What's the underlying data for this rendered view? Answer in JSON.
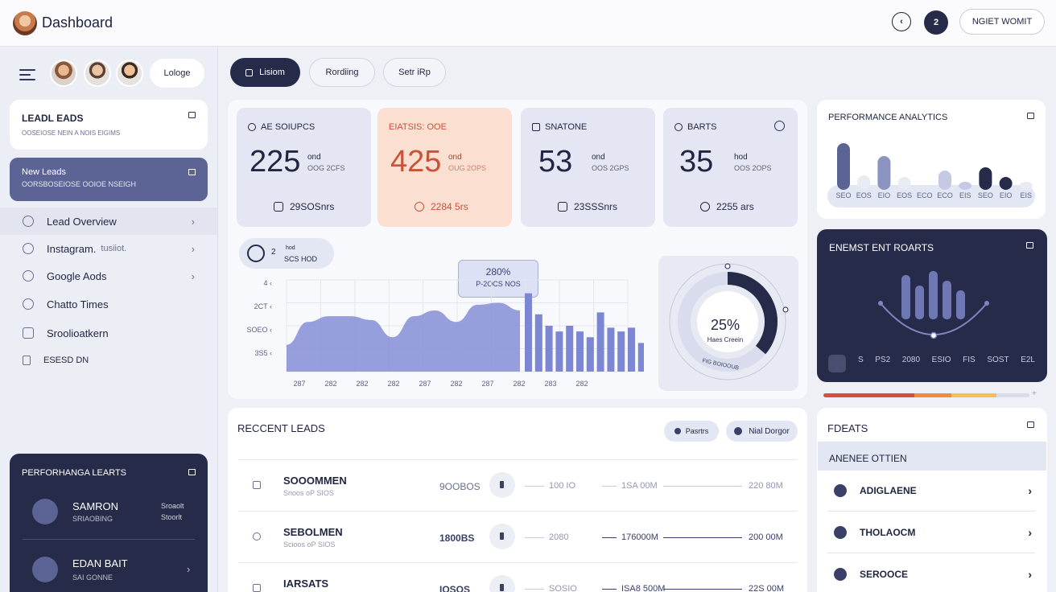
{
  "header": {
    "title": "Dashboard",
    "circle1": "‹",
    "circle2": "2",
    "button": "NGIET WOMIT"
  },
  "sidebar": {
    "profile_button": "Lologe",
    "leads_card": {
      "title": "LEADL EADS",
      "subtitle": "OOSEIOSE NEIN A NOIS EIGIMS"
    },
    "new_leads": {
      "title": "New Leads",
      "subtitle": "OORSBOSEIOSE OOIOE NSEIGH"
    },
    "items": [
      {
        "label": "Lead Overview",
        "note": ""
      },
      {
        "label": "Instagram.",
        "note": "tusiiot."
      },
      {
        "label": "Google Aods",
        "note": ""
      },
      {
        "label": "Chatto Times",
        "note": ""
      },
      {
        "label": "Sroolioatkern",
        "note": ""
      },
      {
        "label": "ESESD DN",
        "note": ""
      }
    ],
    "perf_card": {
      "title": "PERFORHANGA LEARTS",
      "entries": [
        {
          "name": "SAMRON",
          "sub": "SRIAOBING",
          "r1": "Sroaolt",
          "r2": "Stoorlt"
        },
        {
          "name": "EDAN BAIT",
          "sub": "SAI GONNE",
          "r1": "",
          "r2": ""
        }
      ]
    }
  },
  "tabs": [
    "Lisiom",
    "Rordiing",
    "Setr iRp"
  ],
  "stats": [
    {
      "label": "AE SOIUPCS",
      "value": "225",
      "unit1": "ond",
      "unit2": "OOG 2CFS",
      "footer": "29SOSnrs"
    },
    {
      "label": "EIATSIS: OOE",
      "value": "425",
      "unit1": "ond",
      "unit2": "OUG 2OPS",
      "footer": "2284 5rs"
    },
    {
      "label": "SNATONE",
      "value": "53",
      "unit1": "ond",
      "unit2": "OOS 2GPS",
      "footer": "23SSSnrs"
    },
    {
      "label": "BARTS",
      "value": "35",
      "unit1": "hod",
      "unit2": "OOS 2OPS",
      "footer": "2255 ars"
    }
  ],
  "chart_panel": {
    "badge_num": "2",
    "badge_top": "hod",
    "badge_bottom": "SCS HOD",
    "tooltip_top": "280%",
    "tooltip_bottom": "P-2OCS NOS",
    "chart_data": {
      "type": "area",
      "y_ticks": [
        "4",
        "2CT",
        "SOEO",
        "3S5"
      ],
      "x_ticks": [
        "287",
        "282",
        "282",
        "282",
        "287",
        "282",
        "287",
        "282",
        "283",
        "282"
      ],
      "area_values": [
        14,
        26,
        29,
        29,
        27,
        18,
        29,
        32,
        26,
        35,
        36,
        32
      ],
      "bar_values": [
        41,
        30,
        24,
        21,
        24,
        21,
        18,
        31,
        23,
        21,
        23,
        15
      ],
      "title": ""
    }
  },
  "donut": {
    "value": "25%",
    "label": "Haes Creein",
    "bottom": "FIG BOIOOUB",
    "chart_data": {
      "type": "pie",
      "values": [
        25,
        75
      ]
    }
  },
  "perf_analytics": {
    "title": "PERFORMANCE ANALYTICS",
    "chart_data": {
      "type": "bar",
      "categories": [
        "SEO",
        "EOS",
        "EIO",
        "EOS",
        "ECO",
        "ECO",
        "EIS",
        "SEO",
        "EIO",
        "EIS"
      ],
      "values": [
        52,
        12,
        36,
        10,
        0,
        18,
        4,
        22,
        10,
        4
      ]
    }
  },
  "engagement": {
    "title": "ENEMST ENT ROARTS",
    "footer": [
      "S",
      "PS2",
      "2080",
      "ESIO",
      "FIS",
      "SOST",
      "E2L"
    ],
    "chart_data": {
      "type": "bar",
      "values": [
        55,
        42,
        60,
        48,
        36
      ]
    }
  },
  "progress": {
    "segments": [
      44,
      18,
      22,
      16
    ],
    "colors": [
      "#d94f3d",
      "#f08a3d",
      "#f4c14a",
      "#d9dbe5"
    ]
  },
  "recent_leads": {
    "title": "RECCENT LEADS",
    "chip1": "Pasrtrs",
    "chip2": "Nial Dorgor",
    "rows": [
      {
        "name": "SOOOMMEN",
        "sub": "Srioos oP SIOS",
        "v1": "9OOBOS",
        "v2": "100 IO",
        "v3": "1SA 00M",
        "v4": "220 80M"
      },
      {
        "name": "SEBOLMEN",
        "sub": "Scioos oP SIOS",
        "v1": "1800BS",
        "v2": "2080",
        "v3": "176000M",
        "v4": "200 00M"
      },
      {
        "name": "IARSATS",
        "sub": "",
        "v1": "IOSOS",
        "v2": "SOSIO",
        "v3": "ISA8 500M",
        "v4": "22S 00M"
      }
    ]
  },
  "feats": {
    "title": "FDEATS",
    "subheader": "ANENEE OTTIEN",
    "items": [
      "ADIGLAENE",
      "THOLAOCM",
      "SEROOCE"
    ]
  }
}
